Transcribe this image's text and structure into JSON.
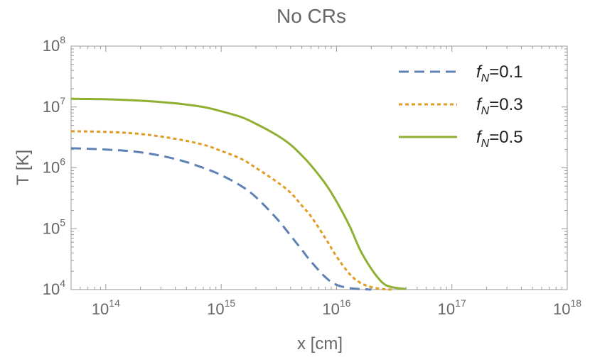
{
  "chart_data": {
    "type": "line",
    "title": "No CRs",
    "xlabel": "x [cm]",
    "ylabel": "T [K]",
    "xscale": "log",
    "yscale": "log",
    "xlim": [
      50000000000000.0,
      1e+18
    ],
    "ylim": [
      10000.0,
      100000000.0
    ],
    "x_ticks": [
      {
        "base": "10",
        "exp": "14",
        "value": 100000000000000.0
      },
      {
        "base": "10",
        "exp": "15",
        "value": 1000000000000000.0
      },
      {
        "base": "10",
        "exp": "16",
        "value": 1e+16
      },
      {
        "base": "10",
        "exp": "17",
        "value": 1e+17
      },
      {
        "base": "10",
        "exp": "18",
        "value": 1e+18
      }
    ],
    "y_ticks": [
      {
        "base": "10",
        "exp": "4",
        "value": 10000.0
      },
      {
        "base": "10",
        "exp": "5",
        "value": 100000.0
      },
      {
        "base": "10",
        "exp": "6",
        "value": 1000000.0
      },
      {
        "base": "10",
        "exp": "7",
        "value": 10000000.0
      },
      {
        "base": "10",
        "exp": "8",
        "value": 100000000.0
      }
    ],
    "legend_position": "top-right",
    "series": [
      {
        "name": "f_N=0.1",
        "label_var": "f",
        "label_sub": "N",
        "label_val": "=0.1",
        "color": "#5e81b5",
        "style": "dashed",
        "x": [
          50000000000000.0,
          100000000000000.0,
          200000000000000.0,
          400000000000000.0,
          700000000000000.0,
          1000000000000000.0,
          1500000000000000.0,
          2000000000000000.0,
          3000000000000000.0,
          4000000000000000.0,
          5000000000000000.0,
          6000000000000000.0,
          8000000000000000.0,
          1e+16,
          1.3e+16,
          1.6e+16,
          2e+16
        ],
        "y": [
          2100000.0,
          2000000.0,
          1800000.0,
          1400000.0,
          1000000.0,
          760000.0,
          500000.0,
          330000.0,
          150000.0,
          77000.0,
          45000.0,
          29000.0,
          16000.0,
          12000.0,
          10600.0,
          10200.0,
          10000.0
        ]
      },
      {
        "name": "f_N=0.3",
        "label_var": "f",
        "label_sub": "N",
        "label_val": "=0.3",
        "color": "#e19c24",
        "style": "dotted",
        "x": [
          50000000000000.0,
          100000000000000.0,
          200000000000000.0,
          400000000000000.0,
          700000000000000.0,
          1000000000000000.0,
          1500000000000000.0,
          2000000000000000.0,
          3000000000000000.0,
          4000000000000000.0,
          5000000000000000.0,
          6000000000000000.0,
          8000000000000000.0,
          1e+16,
          1.3e+16,
          1.6e+16,
          2e+16,
          2.5e+16,
          3e+16
        ],
        "y": [
          4000000.0,
          3900000.0,
          3600000.0,
          3000000.0,
          2400000.0,
          1900000.0,
          1400000.0,
          1000000.0,
          600000.0,
          390000.0,
          240000.0,
          160000.0,
          70000.0,
          35000.0,
          18000.0,
          13000.0,
          11000.0,
          10200.0,
          10000.0
        ]
      },
      {
        "name": "f_N=0.5",
        "label_var": "f",
        "label_sub": "N",
        "label_val": "=0.5",
        "color": "#8fb032",
        "style": "solid",
        "x": [
          50000000000000.0,
          100000000000000.0,
          200000000000000.0,
          400000000000000.0,
          700000000000000.0,
          1000000000000000.0,
          1500000000000000.0,
          2000000000000000.0,
          3000000000000000.0,
          4000000000000000.0,
          5000000000000000.0,
          6000000000000000.0,
          8000000000000000.0,
          1e+16,
          1.3e+16,
          1.6e+16,
          2e+16,
          2.5e+16,
          3e+16,
          4e+16
        ],
        "y": [
          13600000.0,
          13400000.0,
          12700000.0,
          11500000.0,
          10000000.0,
          8500000.0,
          6800000.0,
          5300000.0,
          3500000.0,
          2400000.0,
          1600000.0,
          1100000.0,
          550000.0,
          280000.0,
          110000.0,
          45000.0,
          22000.0,
          13000.0,
          11000.0,
          10200.0
        ]
      }
    ]
  }
}
